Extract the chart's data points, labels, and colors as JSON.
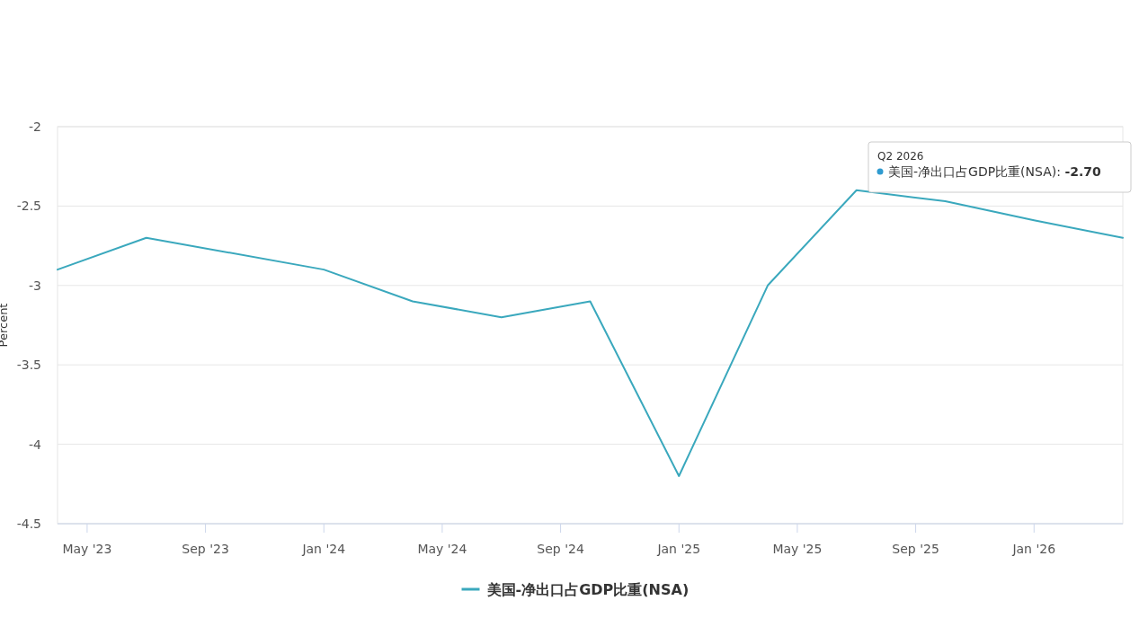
{
  "chart_data": {
    "type": "line",
    "ylabel": "Percent",
    "x": [
      "2023-04",
      "2023-07",
      "2024-01",
      "2024-04",
      "2024-07",
      "2024-10",
      "2025-01",
      "2025-04",
      "2025-07",
      "2025-10",
      "2026-01",
      "2026-04"
    ],
    "series": [
      {
        "name": "美国-净出口占GDP比重(NSA)",
        "color": "#3aa8bd",
        "values": [
          -2.9,
          -2.7,
          -2.9,
          -3.1,
          -3.2,
          -3.1,
          -4.2,
          -3.0,
          -2.4,
          -2.47,
          -2.59,
          -2.7
        ]
      }
    ],
    "xlim": [
      "2023-04",
      "2026-04"
    ],
    "xticks": [
      {
        "value": "2023-05",
        "label": "May '23"
      },
      {
        "value": "2023-09",
        "label": "Sep '23"
      },
      {
        "value": "2024-01",
        "label": "Jan '24"
      },
      {
        "value": "2024-05",
        "label": "May '24"
      },
      {
        "value": "2024-09",
        "label": "Sep '24"
      },
      {
        "value": "2025-01",
        "label": "Jan '25"
      },
      {
        "value": "2025-05",
        "label": "May '25"
      },
      {
        "value": "2025-09",
        "label": "Sep '25"
      },
      {
        "value": "2026-01",
        "label": "Jan '26"
      }
    ],
    "ylim": [
      -4.5,
      -2
    ],
    "yticks": [
      -4.5,
      -4,
      -3.5,
      -3,
      -2.5,
      -2
    ],
    "grid": "y",
    "legend": "bottom",
    "marker": "none",
    "annotations": [
      "Q2 2026",
      "美国-净出口占GDP比重(NSA): **-2.70**"
    ]
  }
}
